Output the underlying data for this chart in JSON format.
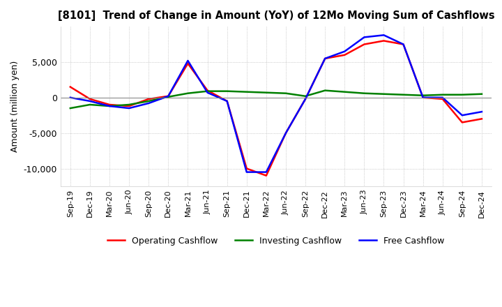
{
  "title": "[8101]  Trend of Change in Amount (YoY) of 12Mo Moving Sum of Cashflows",
  "ylabel": "Amount (million yen)",
  "x_labels": [
    "Sep-19",
    "Dec-19",
    "Mar-20",
    "Jun-20",
    "Sep-20",
    "Dec-20",
    "Mar-21",
    "Jun-21",
    "Sep-21",
    "Dec-21",
    "Mar-22",
    "Jun-22",
    "Sep-22",
    "Dec-22",
    "Mar-23",
    "Jun-23",
    "Sep-23",
    "Dec-23",
    "Mar-24",
    "Jun-24",
    "Sep-24",
    "Dec-24"
  ],
  "operating": [
    1500,
    -200,
    -1000,
    -1200,
    -200,
    200,
    4800,
    1000,
    -500,
    -10000,
    -11000,
    -5000,
    -200,
    5500,
    6000,
    7500,
    8000,
    7500,
    0,
    -200,
    -3500,
    -3000
  ],
  "investing": [
    -1500,
    -1000,
    -1200,
    -1000,
    -500,
    100,
    600,
    900,
    900,
    800,
    700,
    600,
    200,
    1000,
    800,
    600,
    500,
    400,
    300,
    400,
    400,
    500
  ],
  "free": [
    0,
    -500,
    -1200,
    -1500,
    -800,
    200,
    5200,
    700,
    -500,
    -10500,
    -10500,
    -5000,
    -200,
    5500,
    6500,
    8500,
    8800,
    7500,
    0,
    0,
    -2500,
    -2000
  ],
  "operating_color": "#ff0000",
  "investing_color": "#008000",
  "free_color": "#0000ff",
  "ylim": [
    -12500,
    10000
  ],
  "yticks": [
    -10000,
    -5000,
    0,
    5000
  ],
  "background_color": "#ffffff",
  "grid_color": "#aaaaaa",
  "grid_style": "dotted"
}
